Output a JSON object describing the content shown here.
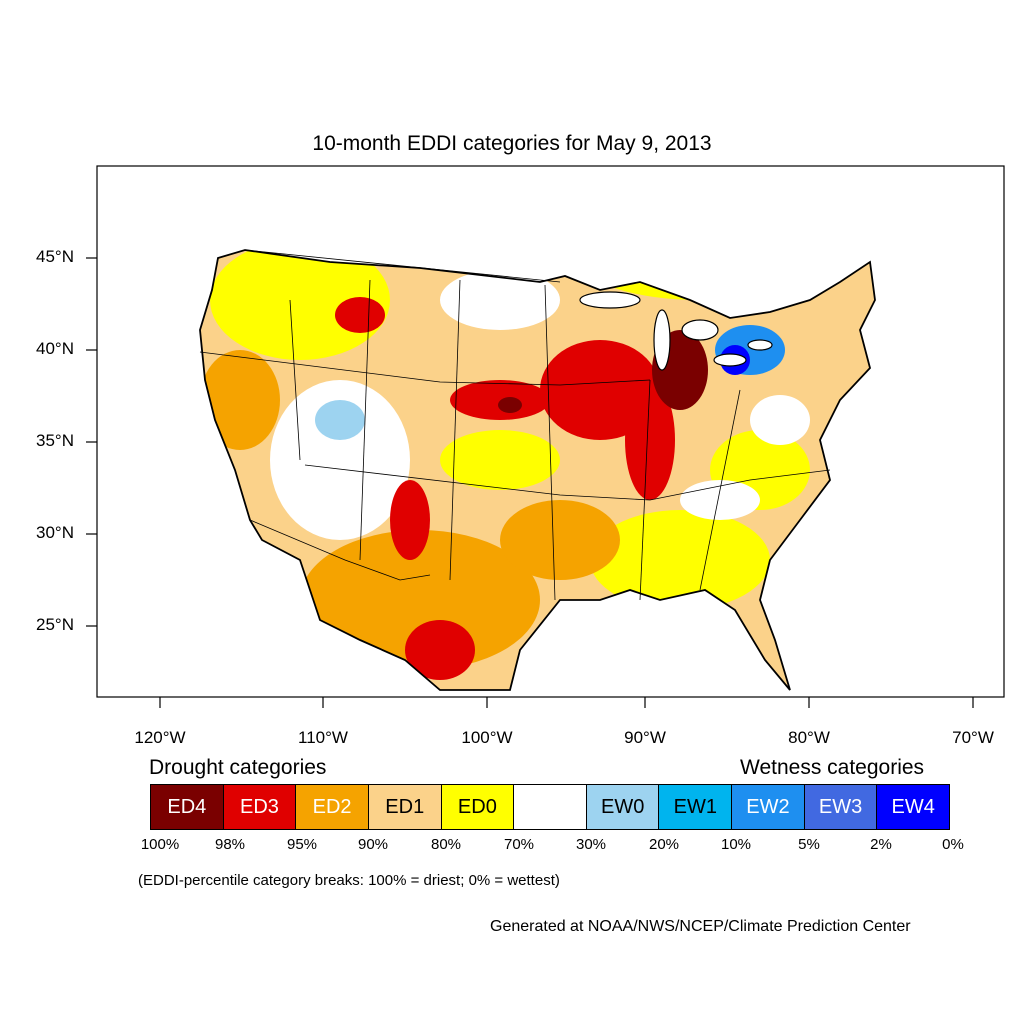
{
  "title": "10-month EDDI categories for May 9, 2013",
  "lat_labels": [
    "45°N",
    "40°N",
    "35°N",
    "30°N",
    "25°N"
  ],
  "lon_labels": [
    "120°W",
    "110°W",
    "100°W",
    "90°W",
    "80°W",
    "70°W"
  ],
  "drought_heading": "Drought categories",
  "wetness_heading": "Wetness categories",
  "categories": [
    {
      "label": "ED4",
      "color": "#7a0000",
      "text_color": "#ffffff"
    },
    {
      "label": "ED3",
      "color": "#e00000",
      "text_color": "#ffffff"
    },
    {
      "label": "ED2",
      "color": "#f5a300",
      "text_color": "#ffffff"
    },
    {
      "label": "ED1",
      "color": "#fbd28a",
      "text_color": "#000000"
    },
    {
      "label": "ED0",
      "color": "#ffff00",
      "text_color": "#000000"
    },
    {
      "label": "",
      "color": "#ffffff",
      "text_color": "#000000"
    },
    {
      "label": "EW0",
      "color": "#9dd3f0",
      "text_color": "#000000"
    },
    {
      "label": "EW1",
      "color": "#00b4ee",
      "text_color": "#000000"
    },
    {
      "label": "EW2",
      "color": "#1e8ff0",
      "text_color": "#ffffff"
    },
    {
      "label": "EW3",
      "color": "#4169e1",
      "text_color": "#ffffff"
    },
    {
      "label": "EW4",
      "color": "#0000ff",
      "text_color": "#ffffff"
    }
  ],
  "breaks": [
    "100%",
    "98%",
    "95%",
    "90%",
    "80%",
    "70%",
    "30%",
    "20%",
    "10%",
    "5%",
    "2%",
    "0%"
  ],
  "note": "(EDDI-percentile category breaks: 100% = driest; 0% = wettest)",
  "credit": "Generated at NOAA/NWS/NCEP/Climate Prediction Center"
}
